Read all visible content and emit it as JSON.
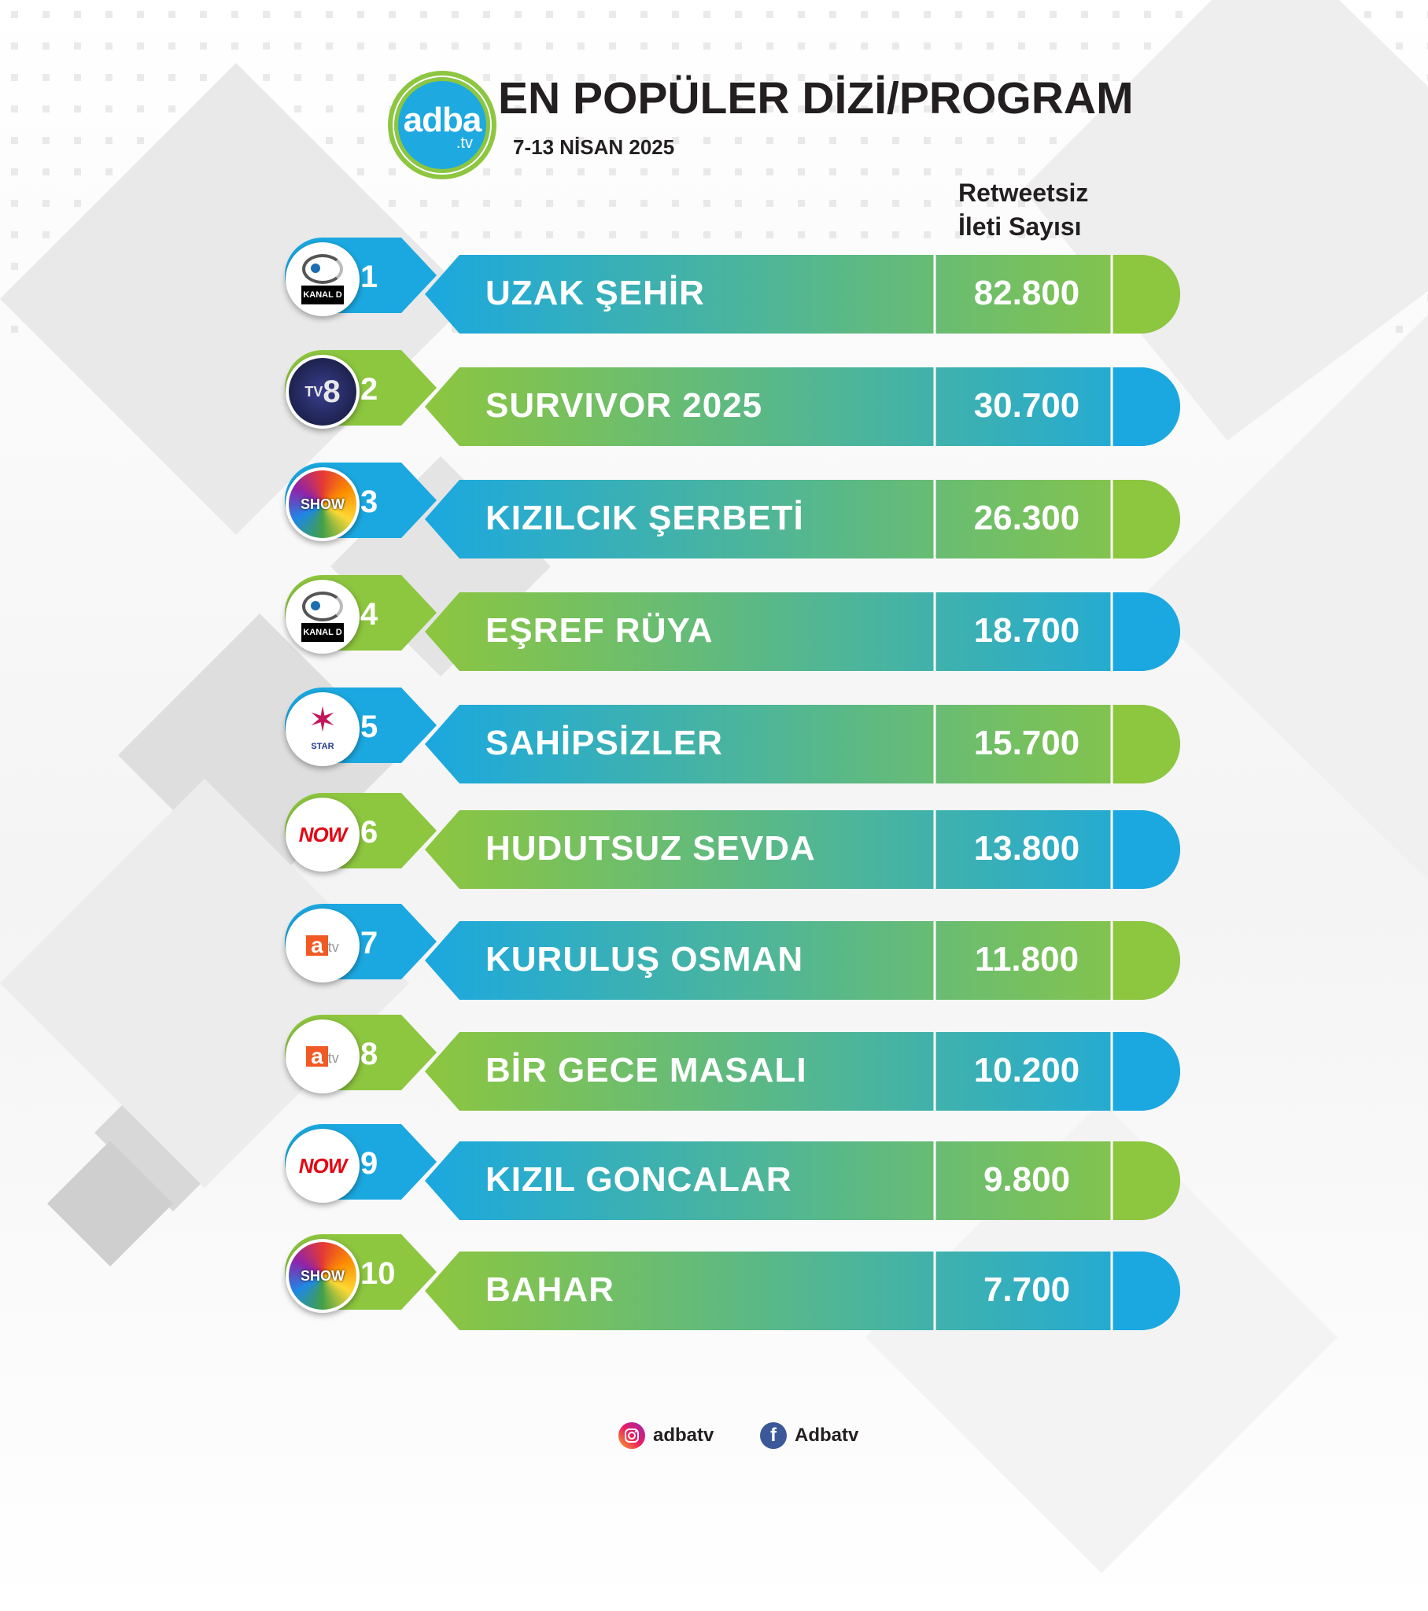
{
  "header": {
    "logo_word": "adba",
    "logo_suffix": ".tv",
    "title": "EN POPÜLER DİZİ/PROGRAM",
    "date": "7-13 NİSAN 2025",
    "column_header_line1": "Retweetsiz",
    "column_header_line2": "İleti Sayısı"
  },
  "colors": {
    "blue": "#1ba8e0",
    "green": "#8dc63f",
    "text_dark": "#231f20"
  },
  "rows": [
    {
      "rank": "1",
      "name": "UZAK ŞEHİR",
      "value": "82.800",
      "channel": "kanal-d-logo",
      "style": "blue"
    },
    {
      "rank": "2",
      "name": "SURVIVOR 2025",
      "value": "30.700",
      "channel": "tv8-logo",
      "style": "green"
    },
    {
      "rank": "3",
      "name": "KIZILCIK ŞERBETİ",
      "value": "26.300",
      "channel": "show-tv-logo",
      "style": "blue"
    },
    {
      "rank": "4",
      "name": "EŞREF RÜYA",
      "value": "18.700",
      "channel": "kanal-d-logo",
      "style": "green"
    },
    {
      "rank": "5",
      "name": "SAHİPSİZLER",
      "value": "15.700",
      "channel": "star-tv-logo",
      "style": "blue"
    },
    {
      "rank": "6",
      "name": "HUDUTSUZ SEVDA",
      "value": "13.800",
      "channel": "now-logo",
      "style": "green"
    },
    {
      "rank": "7",
      "name": "KURULUŞ OSMAN",
      "value": "11.800",
      "channel": "atv-logo",
      "style": "blue"
    },
    {
      "rank": "8",
      "name": "BİR GECE MASALI",
      "value": "10.200",
      "channel": "atv-logo",
      "style": "green"
    },
    {
      "rank": "9",
      "name": "KIZIL GONCALAR",
      "value": "9.800",
      "channel": "now-logo",
      "style": "blue"
    },
    {
      "rank": "10",
      "name": "BAHAR",
      "value": "7.700",
      "channel": "show-tv-logo",
      "style": "green"
    }
  ],
  "channel_logos": {
    "kanal_d": "KANAL D",
    "tv8": "TV8",
    "show": "SHOW",
    "star": "STAR",
    "now": "NOW",
    "atv": "atv"
  },
  "social": {
    "instagram_icon": "instagram-icon",
    "instagram_handle": "adbatv",
    "facebook_icon": "facebook-icon",
    "facebook_handle": "Adbatv"
  }
}
